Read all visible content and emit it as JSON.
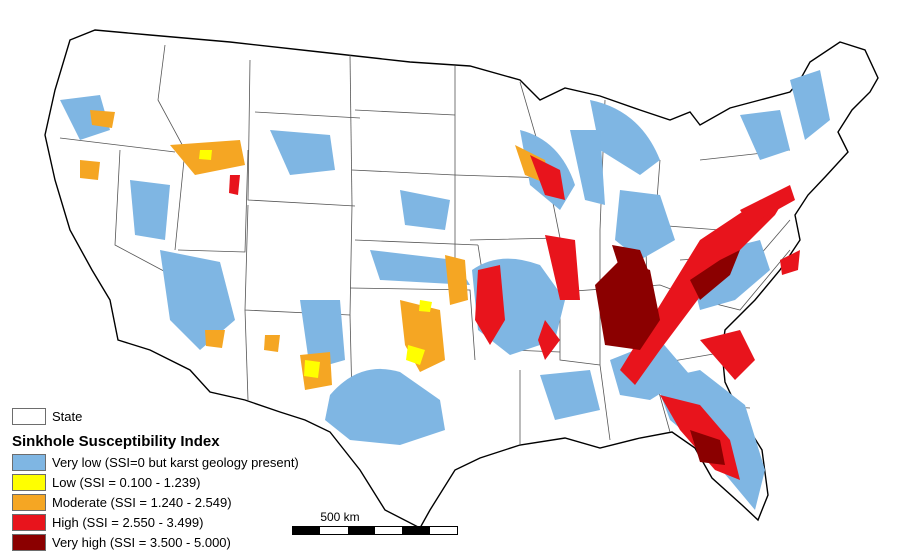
{
  "legend": {
    "state_label": "State",
    "title": "Sinkhole Susceptibility Index",
    "items": [
      {
        "key": "very-low",
        "label": "Very low (SSI=0 but karst geology present)",
        "color": "#7fb6e3"
      },
      {
        "key": "low",
        "label": "Low (SSI = 0.100 - 1.239)",
        "color": "#ffff00"
      },
      {
        "key": "moderate",
        "label": "Moderate (SSI = 1.240 - 2.549)",
        "color": "#f5a623"
      },
      {
        "key": "high",
        "label": "High (SSI = 2.550 - 3.499)",
        "color": "#e8141c"
      },
      {
        "key": "very-high",
        "label": "Very high (SSI = 3.500 - 5.000)",
        "color": "#8b0000"
      }
    ]
  },
  "scalebar": {
    "label": "500 km"
  },
  "colors": {
    "state_fill": "#ffffff",
    "state_border": "#555555",
    "outline": "#000000"
  }
}
